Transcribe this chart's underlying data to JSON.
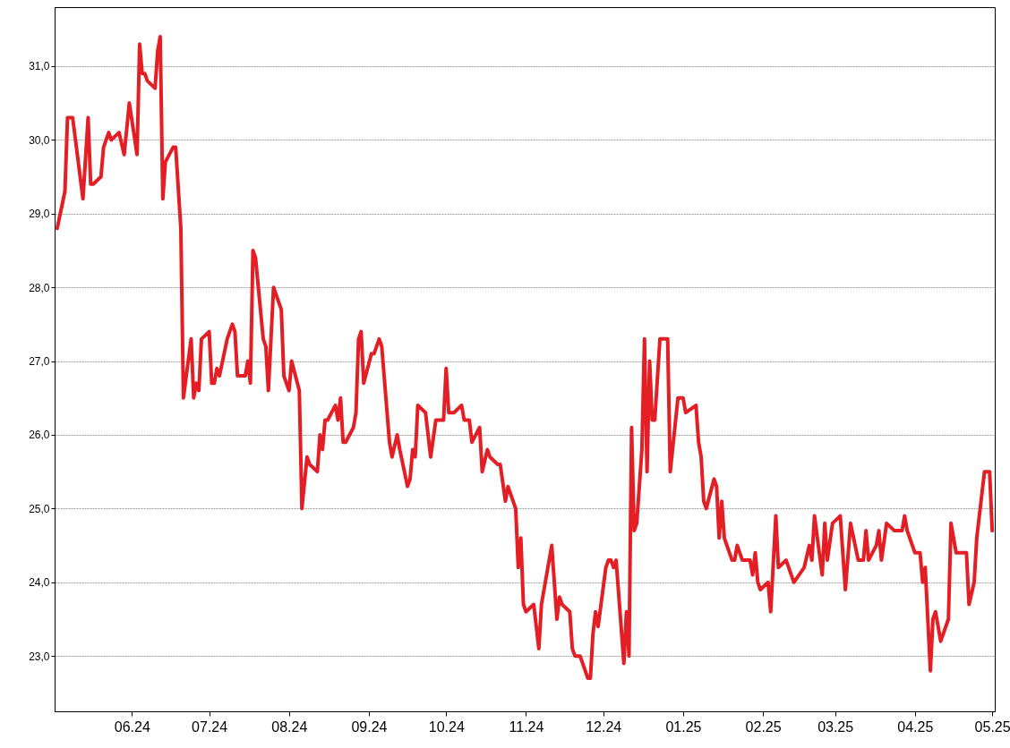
{
  "chart_data": {
    "type": "line",
    "grid": "y",
    "xlim": [
      "2024-05-02",
      "2025-05-02"
    ],
    "ylim": [
      22.25,
      31.8
    ],
    "xticks": [
      {
        "value": "2024-06-01",
        "label": "06.24"
      },
      {
        "value": "2024-07-01",
        "label": "07.24"
      },
      {
        "value": "2024-08-01",
        "label": "08.24"
      },
      {
        "value": "2024-09-01",
        "label": "09.24"
      },
      {
        "value": "2024-10-01",
        "label": "10.24"
      },
      {
        "value": "2024-11-01",
        "label": "11.24"
      },
      {
        "value": "2024-12-01",
        "label": "12.24"
      },
      {
        "value": "2025-01-01",
        "label": "01.25"
      },
      {
        "value": "2025-02-01",
        "label": "02.25"
      },
      {
        "value": "2025-03-01",
        "label": "03.25"
      },
      {
        "value": "2025-04-01",
        "label": "04.25"
      },
      {
        "value": "2025-05-01",
        "label": "05.25"
      }
    ],
    "yticks": [
      {
        "value": 23,
        "label": "23,0"
      },
      {
        "value": 24,
        "label": "24,0"
      },
      {
        "value": 25,
        "label": "25,0"
      },
      {
        "value": 26,
        "label": "26,0"
      },
      {
        "value": 27,
        "label": "27,0"
      },
      {
        "value": 28,
        "label": "28,0"
      },
      {
        "value": 29,
        "label": "29,0"
      },
      {
        "value": 30,
        "label": "30,0"
      },
      {
        "value": 31,
        "label": "31,0"
      }
    ],
    "x": [
      "2024-05-03",
      "2024-05-06",
      "2024-05-07",
      "2024-05-09",
      "2024-05-13",
      "2024-05-15",
      "2024-05-16",
      "2024-05-17",
      "2024-05-20",
      "2024-05-21",
      "2024-05-23",
      "2024-05-24",
      "2024-05-27",
      "2024-05-29",
      "2024-05-31",
      "2024-06-03",
      "2024-06-04",
      "2024-06-05",
      "2024-06-06",
      "2024-06-07",
      "2024-06-10",
      "2024-06-11",
      "2024-06-12",
      "2024-06-13",
      "2024-06-14",
      "2024-06-17",
      "2024-06-18",
      "2024-06-20",
      "2024-06-21",
      "2024-06-24",
      "2024-06-25",
      "2024-06-26",
      "2024-06-27",
      "2024-06-28",
      "2024-07-01",
      "2024-07-02",
      "2024-07-03",
      "2024-07-04",
      "2024-07-05",
      "2024-07-08",
      "2024-07-10",
      "2024-07-11",
      "2024-07-12",
      "2024-07-15",
      "2024-07-16",
      "2024-07-17",
      "2024-07-18",
      "2024-07-19",
      "2024-07-22",
      "2024-07-23",
      "2024-07-24",
      "2024-07-26",
      "2024-07-29",
      "2024-07-30",
      "2024-08-01",
      "2024-08-02",
      "2024-08-05",
      "2024-08-06",
      "2024-08-08",
      "2024-08-09",
      "2024-08-12",
      "2024-08-13",
      "2024-08-14",
      "2024-08-15",
      "2024-08-16",
      "2024-08-19",
      "2024-08-20",
      "2024-08-21",
      "2024-08-22",
      "2024-08-23",
      "2024-08-26",
      "2024-08-27",
      "2024-08-28",
      "2024-08-29",
      "2024-08-30",
      "2024-09-02",
      "2024-09-03",
      "2024-09-05",
      "2024-09-06",
      "2024-09-09",
      "2024-09-10",
      "2024-09-12",
      "2024-09-13",
      "2024-09-16",
      "2024-09-17",
      "2024-09-18",
      "2024-09-19",
      "2024-09-20",
      "2024-09-23",
      "2024-09-25",
      "2024-09-27",
      "2024-09-30",
      "2024-10-01",
      "2024-10-02",
      "2024-10-04",
      "2024-10-07",
      "2024-10-08",
      "2024-10-10",
      "2024-10-11",
      "2024-10-14",
      "2024-10-15",
      "2024-10-17",
      "2024-10-18",
      "2024-10-21",
      "2024-10-22",
      "2024-10-24",
      "2024-10-25",
      "2024-10-28",
      "2024-10-29",
      "2024-10-30",
      "2024-10-31",
      "2024-11-01",
      "2024-11-04",
      "2024-11-06",
      "2024-11-07",
      "2024-11-11",
      "2024-11-13",
      "2024-11-14",
      "2024-11-15",
      "2024-11-18",
      "2024-11-19",
      "2024-11-20",
      "2024-11-22",
      "2024-11-23",
      "2024-11-25",
      "2024-11-26",
      "2024-11-27",
      "2024-11-28",
      "2024-11-29",
      "2024-12-02",
      "2024-12-03",
      "2024-12-04",
      "2024-12-05",
      "2024-12-06",
      "2024-12-09",
      "2024-12-10",
      "2024-12-11",
      "2024-12-12",
      "2024-12-13",
      "2024-12-14",
      "2024-12-16",
      "2024-12-17",
      "2024-12-18",
      "2024-12-19",
      "2024-12-20",
      "2024-12-21",
      "2024-12-23",
      "2024-12-26",
      "2024-12-27",
      "2024-12-30",
      "2025-01-01",
      "2025-01-02",
      "2025-01-06",
      "2025-01-07",
      "2025-01-08",
      "2025-01-09",
      "2025-01-10",
      "2025-01-13",
      "2025-01-14",
      "2025-01-15",
      "2025-01-16",
      "2025-01-17",
      "2025-01-20",
      "2025-01-21",
      "2025-01-22",
      "2025-01-24",
      "2025-01-27",
      "2025-01-28",
      "2025-01-29",
      "2025-01-30",
      "2025-01-31",
      "2025-02-03",
      "2025-02-04",
      "2025-02-06",
      "2025-02-07",
      "2025-02-10",
      "2025-02-13",
      "2025-02-15",
      "2025-02-17",
      "2025-02-19",
      "2025-02-20",
      "2025-02-21",
      "2025-02-24",
      "2025-02-25",
      "2025-02-26",
      "2025-02-28",
      "2025-03-03",
      "2025-03-05",
      "2025-03-07",
      "2025-03-10",
      "2025-03-12",
      "2025-03-13",
      "2025-03-14",
      "2025-03-17",
      "2025-03-18",
      "2025-03-19",
      "2025-03-21",
      "2025-03-24",
      "2025-03-27",
      "2025-03-28",
      "2025-03-29",
      "2025-04-01",
      "2025-04-03",
      "2025-04-04",
      "2025-04-05",
      "2025-04-07",
      "2025-04-08",
      "2025-04-09",
      "2025-04-11",
      "2025-04-14",
      "2025-04-15",
      "2025-04-17",
      "2025-04-21",
      "2025-04-22",
      "2025-04-24",
      "2025-04-25",
      "2025-04-28",
      "2025-04-30",
      "2025-05-01"
    ],
    "series": [
      {
        "color": "#e31e24",
        "values": [
          28.8,
          29.3,
          30.3,
          30.3,
          29.2,
          30.3,
          29.4,
          29.4,
          29.5,
          29.9,
          30.1,
          30.0,
          30.1,
          29.8,
          30.5,
          29.8,
          31.3,
          30.9,
          30.9,
          30.8,
          30.7,
          31.2,
          31.4,
          29.2,
          29.7,
          29.9,
          29.9,
          28.8,
          26.5,
          27.3,
          26.5,
          26.7,
          26.6,
          27.3,
          27.4,
          26.7,
          26.7,
          26.9,
          26.8,
          27.3,
          27.5,
          27.4,
          26.8,
          26.8,
          27.0,
          26.7,
          28.5,
          28.4,
          27.3,
          27.2,
          26.6,
          28.0,
          27.7,
          26.8,
          26.6,
          27.0,
          26.6,
          25.0,
          25.7,
          25.6,
          25.5,
          26.0,
          25.8,
          26.2,
          26.2,
          26.4,
          26.2,
          26.5,
          25.9,
          25.9,
          26.1,
          26.3,
          27.3,
          27.4,
          26.7,
          27.1,
          27.1,
          27.3,
          27.2,
          25.9,
          25.7,
          26.0,
          25.8,
          25.3,
          25.4,
          25.8,
          25.7,
          26.4,
          26.3,
          25.7,
          26.2,
          26.2,
          26.9,
          26.3,
          26.3,
          26.4,
          26.2,
          26.2,
          25.9,
          26.1,
          25.5,
          25.8,
          25.7,
          25.6,
          25.6,
          25.1,
          25.3,
          25.0,
          24.2,
          24.6,
          23.7,
          23.6,
          23.7,
          23.1,
          23.7,
          24.5,
          23.5,
          23.8,
          23.7,
          23.6,
          23.1,
          23.0,
          23.0,
          22.9,
          22.7,
          22.7,
          23.3,
          23.6,
          23.4,
          24.2,
          24.3,
          24.3,
          24.2,
          24.3,
          22.9,
          23.6,
          23.0,
          26.1,
          24.7,
          24.8,
          25.8,
          27.3,
          25.5,
          27.0,
          26.2,
          26.2,
          27.3,
          27.3,
          25.5,
          26.5,
          26.5,
          26.3,
          26.4,
          25.9,
          25.7,
          25.1,
          25.0,
          25.4,
          25.3,
          24.6,
          25.1,
          24.6,
          24.3,
          24.3,
          24.5,
          24.3,
          24.3,
          24.1,
          24.4,
          24.0,
          23.9,
          24.0,
          23.6,
          24.9,
          24.2,
          24.3,
          24.0,
          24.1,
          24.2,
          24.5,
          24.3,
          24.9,
          24.1,
          24.8,
          24.3,
          24.8,
          24.9,
          23.9,
          24.8,
          24.3,
          24.3,
          24.7,
          24.3,
          24.5,
          24.7,
          24.3,
          24.8,
          24.7,
          24.7,
          24.9,
          24.7,
          24.4,
          24.4,
          24.0,
          24.2,
          22.8,
          23.5,
          23.6,
          23.2,
          23.5,
          24.8,
          24.4,
          24.4,
          23.7,
          24.0,
          24.6,
          25.5,
          25.5,
          24.7
        ]
      }
    ]
  }
}
